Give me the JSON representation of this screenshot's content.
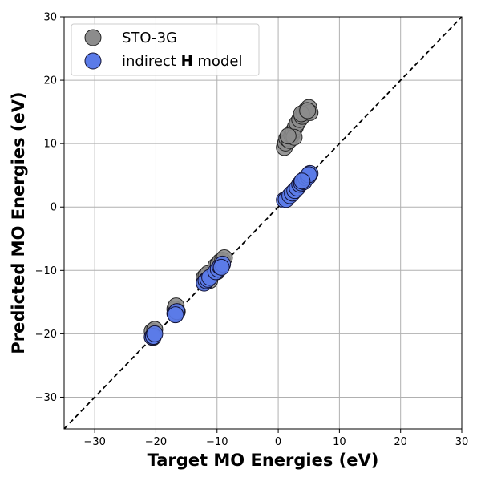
{
  "chart_data": {
    "type": "scatter",
    "title": "",
    "xlabel": "Target MO Energies (eV)",
    "ylabel": "Predicted MO Energies (eV)",
    "xlim": [
      -35,
      30
    ],
    "ylim": [
      -35,
      30
    ],
    "xticks": [
      -30,
      -20,
      -10,
      0,
      10,
      20,
      30
    ],
    "yticks": [
      -30,
      -20,
      -10,
      0,
      10,
      20,
      30
    ],
    "xtick_labels": [
      "−30",
      "−20",
      "−10",
      "0",
      "10",
      "20",
      "30"
    ],
    "ytick_labels": [
      "−30",
      "−20",
      "−10",
      "0",
      "10",
      "20",
      "30"
    ],
    "grid": true,
    "reference_line": {
      "style": "dashed",
      "color": "#000000",
      "from": [
        -35,
        -35
      ],
      "to": [
        30,
        30
      ]
    },
    "legend": {
      "position": "top-left",
      "entries": [
        {
          "prefix": "STO-3G",
          "bold": "",
          "suffix": ""
        },
        {
          "prefix": "indirect ",
          "bold": "H",
          "suffix": " model"
        }
      ]
    },
    "series": [
      {
        "name": "STO-3G",
        "color": "#8c8c8c",
        "edge_color": "#222222",
        "points": [
          [
            -20.6,
            -19.6
          ],
          [
            -20.4,
            -20.2
          ],
          [
            -20.2,
            -19.3
          ],
          [
            -20.5,
            -20.6
          ],
          [
            -16.9,
            -16.1
          ],
          [
            -16.7,
            -15.6
          ],
          [
            -16.5,
            -16.5
          ],
          [
            -16.8,
            -16.9
          ],
          [
            -12.1,
            -11.1
          ],
          [
            -11.8,
            -10.8
          ],
          [
            -11.5,
            -10.5
          ],
          [
            -11.2,
            -11.6
          ],
          [
            -12.0,
            -11.9
          ],
          [
            -10.2,
            -9.3
          ],
          [
            -9.8,
            -9.0
          ],
          [
            -9.5,
            -8.6
          ],
          [
            -9.1,
            -8.4
          ],
          [
            -8.8,
            -8.0
          ],
          [
            -9.6,
            -9.6
          ],
          [
            -10.0,
            -10.2
          ],
          [
            1.0,
            9.4
          ],
          [
            1.2,
            10.1
          ],
          [
            1.4,
            10.8
          ],
          [
            1.8,
            10.5
          ],
          [
            2.2,
            11.3
          ],
          [
            2.5,
            12.0
          ],
          [
            2.8,
            12.6
          ],
          [
            3.1,
            13.2
          ],
          [
            3.5,
            13.8
          ],
          [
            3.9,
            14.3
          ],
          [
            4.2,
            14.9
          ],
          [
            4.6,
            15.3
          ],
          [
            5.0,
            15.7
          ],
          [
            5.2,
            14.9
          ],
          [
            3.8,
            14.7
          ],
          [
            2.6,
            11.0
          ],
          [
            1.6,
            11.2
          ],
          [
            4.8,
            15.2
          ]
        ]
      },
      {
        "name": "indirect H model",
        "color": "#5b7be8",
        "edge_color": "#111133",
        "points": [
          [
            -20.6,
            -20.5
          ],
          [
            -20.4,
            -20.4
          ],
          [
            -20.2,
            -20.0
          ],
          [
            -16.9,
            -16.8
          ],
          [
            -16.6,
            -16.5
          ],
          [
            -16.8,
            -17.0
          ],
          [
            -12.1,
            -12.0
          ],
          [
            -11.8,
            -11.6
          ],
          [
            -11.5,
            -11.4
          ],
          [
            -11.2,
            -11.1
          ],
          [
            -10.2,
            -10.2
          ],
          [
            -9.8,
            -9.8
          ],
          [
            -9.5,
            -9.4
          ],
          [
            -9.1,
            -9.0
          ],
          [
            -9.3,
            -9.5
          ],
          [
            1.0,
            1.1
          ],
          [
            1.3,
            1.2
          ],
          [
            1.9,
            1.8
          ],
          [
            2.3,
            2.2
          ],
          [
            2.7,
            2.6
          ],
          [
            3.1,
            3.0
          ],
          [
            3.5,
            3.6
          ],
          [
            3.8,
            3.8
          ],
          [
            4.2,
            4.0
          ],
          [
            4.5,
            4.6
          ],
          [
            4.9,
            4.8
          ],
          [
            5.2,
            5.3
          ],
          [
            5.0,
            5.1
          ],
          [
            3.9,
            4.1
          ]
        ]
      }
    ]
  }
}
